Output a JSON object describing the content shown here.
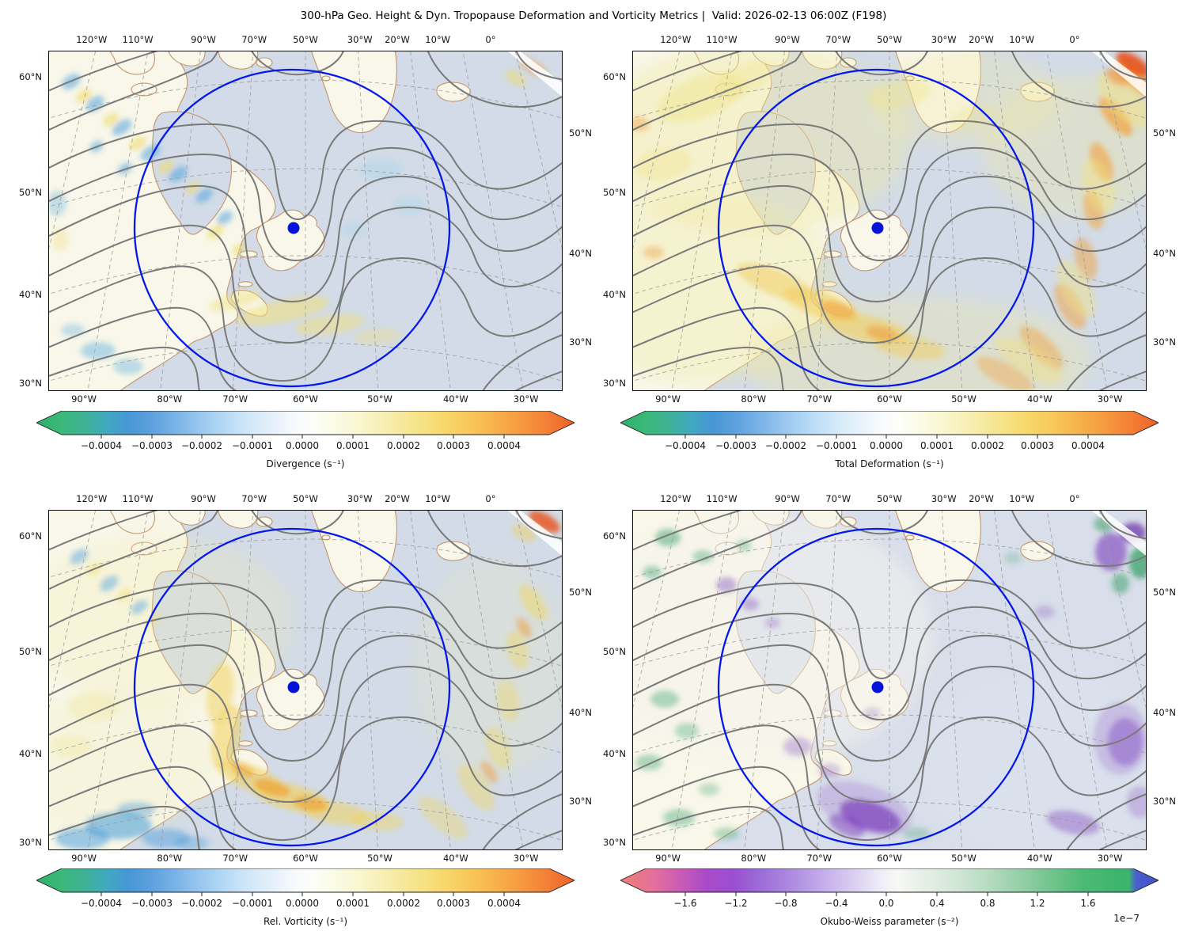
{
  "title": "300-hPa Geo. Height & Dyn. Tropopause Deformation and Vorticity Metrics |  Valid: 2026-02-13 06:00Z (F198)",
  "axes": {
    "top": [
      "120°W",
      "110°W",
      "90°W",
      "70°W",
      "50°W",
      "30°W",
      "20°W",
      "10°W",
      "0°"
    ],
    "bottom": [
      "90°W",
      "80°W",
      "70°W",
      "60°W",
      "50°W",
      "40°W",
      "30°W"
    ],
    "left": [
      "60°N",
      "50°N",
      "40°N",
      "30°N"
    ],
    "right": [
      "50°N",
      "40°N",
      "30°N"
    ]
  },
  "panels": [
    {
      "name": "divergence",
      "cb_label": "Divergence (s⁻¹)",
      "cb_ticks": [
        "−0.0004",
        "−0.0003",
        "−0.0002",
        "−0.0001",
        "0.0000",
        "0.0001",
        "0.0002",
        "0.0003",
        "0.0004"
      ],
      "cb_offset": ""
    },
    {
      "name": "total-deformation",
      "cb_label": "Total Deformation (s⁻¹)",
      "cb_ticks": [
        "−0.0004",
        "−0.0003",
        "−0.0002",
        "−0.0001",
        "0.0000",
        "0.0001",
        "0.0002",
        "0.0003",
        "0.0004"
      ],
      "cb_offset": ""
    },
    {
      "name": "rel-vorticity",
      "cb_label": "Rel. Vorticity (s⁻¹)",
      "cb_ticks": [
        "−0.0004",
        "−0.0003",
        "−0.0002",
        "−0.0001",
        "0.0000",
        "0.0001",
        "0.0002",
        "0.0003",
        "0.0004"
      ],
      "cb_offset": ""
    },
    {
      "name": "okubo-weiss",
      "cb_label": "Okubo-Weiss parameter (s⁻²)",
      "cb_ticks": [
        "−1.6",
        "−1.2",
        "−0.8",
        "−0.4",
        "0.0",
        "0.4",
        "0.8",
        "1.2",
        "1.6"
      ],
      "cb_offset": "1e−7"
    }
  ],
  "colors": {
    "ocean": "#d2dbe7",
    "land": "#f8f7e9",
    "coastline": "#c2946b",
    "height_contours": "#7a7a7a",
    "graticule": "#9a9a9a",
    "range_ring": "#0518ec",
    "marker": "#0513d8"
  },
  "chart_data": {
    "type": "heatmap",
    "subtype": "2x2 filled-contour map panels (cartographic) sharing one geopotential-height contour overlay",
    "title": "300-hPa Geo. Height & Dyn. Tropopause Deformation and Vorticity Metrics",
    "valid_time": "2026-02-13 06:00Z",
    "forecast_hour": 198,
    "level_hPa": 300,
    "axis_ticks": {
      "top_longitude": [
        "120°W",
        "110°W",
        "90°W",
        "70°W",
        "50°W",
        "30°W",
        "20°W",
        "10°W",
        "0°"
      ],
      "bottom_longitude": [
        "90°W",
        "80°W",
        "70°W",
        "60°W",
        "50°W",
        "40°W",
        "30°W"
      ],
      "left_latitude": [
        "60°N",
        "50°N",
        "40°N",
        "30°N"
      ],
      "right_latitude": [
        "50°N",
        "40°N",
        "30°N"
      ]
    },
    "marker": {
      "style": "filled blue dot with large blue circle (range ring) around it",
      "location_estimate": "≈49°N 56°W, north-central Newfoundland (same in all four panels)"
    },
    "overlays": {
      "height_contours": "gray solid 300-hPa geopotential height contours: ridge NW, deep trough over Newfoundland/western Atlantic, downstream ridge near 30–40°W",
      "coastlines": "tan (eastern North America, Hudson Bay, Baffin Island, Greenland, Iceland, Newfoundland, Nova Scotia)",
      "graticule": "dashed gray lat/lon lines every 10°"
    },
    "panels": [
      {
        "position": "top-left",
        "variable": "Divergence",
        "units": "s⁻¹",
        "colorbar_ticks": [
          -0.0004,
          -0.0003,
          -0.0002,
          -0.0001,
          0.0,
          0.0001,
          0.0002,
          0.0003,
          0.0004
        ],
        "colorbar_range_approx": [
          -0.0005,
          0.0005
        ],
        "colorbar_extend": "both",
        "colormap": "green → blue → white → yellow → orange",
        "features": [
          "field weak / near zero over most of the domain",
          "alternating positive–negative mesoscale wave packets NW of Hudson Bay",
          "weak positive (yellow) band near Nova Scotia and south of Newfoundland",
          "scattered negative (blue) patches SW corner and bottom-left",
          "small positive maximum at far NE corner"
        ]
      },
      {
        "position": "top-right",
        "variable": "Total Deformation",
        "units": "s⁻¹",
        "colorbar_ticks": [
          -0.0004,
          -0.0003,
          -0.0002,
          -0.0001,
          0.0,
          0.0001,
          0.0002,
          0.0003,
          0.0004
        ],
        "colorbar_range_approx": [
          -0.0005,
          0.0005
        ],
        "colorbar_extend": "both",
        "colormap": "green → blue → white → yellow → orange",
        "features": [
          "broad weak-positive (pale yellow) field over land",
          "strong deformation streak from the Great Lakes through Nova Scotia",
          "long SW–NE deformation band along the east-Atlantic jet / ridge flank",
          "absolute maximum (orange-red) at the far NE corner",
          "minimum (blue-gray) inside the trough over Newfoundland waters"
        ]
      },
      {
        "position": "bottom-left",
        "variable": "Rel. Vorticity",
        "units": "s⁻¹",
        "colorbar_ticks": [
          -0.0004,
          -0.0003,
          -0.0002,
          -0.0001,
          0.0,
          0.0001,
          0.0002,
          0.0003,
          0.0004
        ],
        "colorbar_range_approx": [
          -0.0005,
          0.0005
        ],
        "colorbar_extend": "both",
        "colormap": "green → blue → white → yellow → orange",
        "features": [
          "cyclonic (yellow-orange) band wrapping the trough base from Nova Scotia eastward",
          "cyclonic streak along the downstream SW–NE Atlantic jet",
          "anticyclonic (blue) patches in the SW corner and NW wave packets",
          "positive maximum at far NE corner"
        ]
      },
      {
        "position": "bottom-right",
        "variable": "Okubo-Weiss parameter",
        "units": "s⁻²",
        "scale_factor": 1e-07,
        "colorbar_ticks_scaled": [
          -1.6,
          -1.2,
          -0.8,
          -0.4,
          0.0,
          0.4,
          0.8,
          1.2,
          1.6
        ],
        "colorbar_range_approx_scaled": [
          -2.0,
          2.0
        ],
        "colorbar_extend": "both",
        "colormap": "red → purple → white → green → blue",
        "features": [
          "field near zero over most of the domain",
          "strain-dominated (purple) minima south of Nova Scotia, mid-Atlantic and NE corner",
          "rotation-dominated (green) maxima scattered through NW quadrant and near Iceland/Greenland",
          "pale blue-gray background over the subtropical Atlantic"
        ]
      }
    ]
  }
}
